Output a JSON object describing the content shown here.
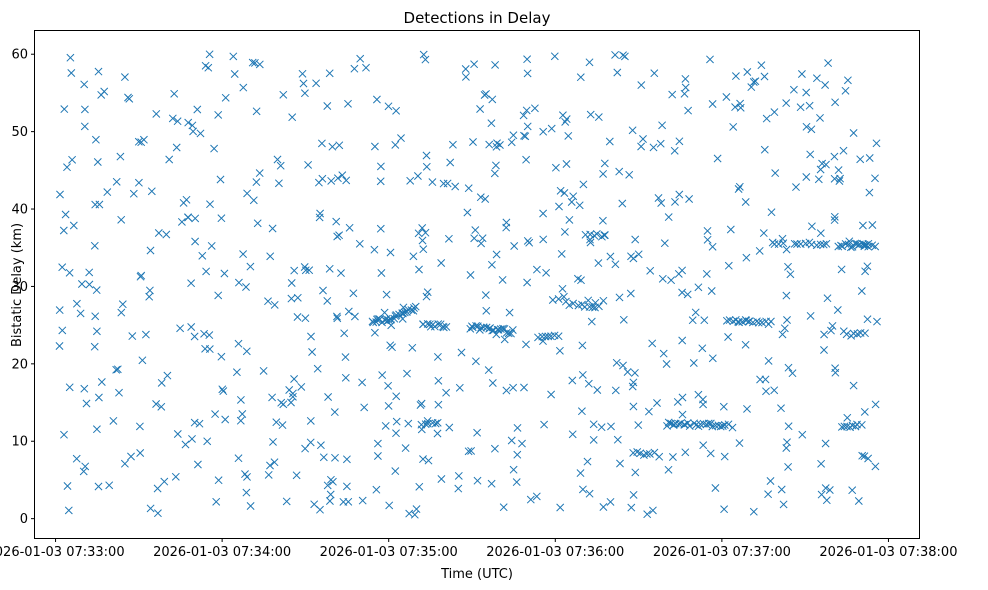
{
  "chart_data": {
    "type": "scatter",
    "title": "Detections in Delay",
    "xlabel": "Time (UTC)",
    "ylabel": "Bistatic Delay (km)",
    "marker": "x",
    "marker_color": "#1f77b4",
    "grid": false,
    "x_unit": "seconds after 2026-01-03 07:33:00 UTC",
    "xlim": [
      -7.4,
      311
    ],
    "ylim": [
      -2.5,
      63
    ],
    "x_ticks": [
      0,
      60,
      120,
      180,
      240,
      300
    ],
    "x_tick_labels": [
      "2026-01-03 07:33:00",
      "2026-01-03 07:34:00",
      "2026-01-03 07:35:00",
      "2026-01-03 07:36:00",
      "2026-01-03 07:37:00",
      "2026-01-03 07:38:00"
    ],
    "y_ticks": [
      0,
      10,
      20,
      30,
      40,
      50,
      60
    ],
    "y_tick_labels": [
      "0",
      "10",
      "20",
      "30",
      "40",
      "50",
      "60"
    ],
    "generator": {
      "seed": 20260103,
      "random_detections": 720,
      "x_range": [
        0.5,
        296
      ],
      "y_range": [
        0.5,
        60
      ],
      "tracks": [
        {
          "x_start": 114,
          "x_end": 121,
          "y_start": 25.6,
          "y_end": 25.6,
          "count": 12,
          "jitter": 0.25
        },
        {
          "x_start": 121,
          "x_end": 130,
          "y_start": 25.8,
          "y_end": 27.2,
          "count": 14,
          "jitter": 0.3
        },
        {
          "x_start": 132,
          "x_end": 141,
          "y_start": 25.1,
          "y_end": 24.9,
          "count": 12,
          "jitter": 0.25
        },
        {
          "x_start": 149,
          "x_end": 165,
          "y_start": 24.8,
          "y_end": 24.1,
          "count": 22,
          "jitter": 0.3
        },
        {
          "x_start": 132,
          "x_end": 138,
          "y_start": 12.2,
          "y_end": 12.2,
          "count": 6,
          "jitter": 0.2
        },
        {
          "x_start": 174,
          "x_end": 181,
          "y_start": 23.5,
          "y_end": 23.5,
          "count": 7,
          "jitter": 0.2
        },
        {
          "x_start": 184,
          "x_end": 196,
          "y_start": 27.8,
          "y_end": 27.4,
          "count": 10,
          "jitter": 0.25
        },
        {
          "x_start": 191,
          "x_end": 198,
          "y_start": 36.5,
          "y_end": 36.5,
          "count": 6,
          "jitter": 0.3
        },
        {
          "x_start": 208,
          "x_end": 214,
          "y_start": 8.6,
          "y_end": 8.2,
          "count": 6,
          "jitter": 0.2
        },
        {
          "x_start": 220,
          "x_end": 242,
          "y_start": 12.2,
          "y_end": 12.0,
          "count": 26,
          "jitter": 0.25
        },
        {
          "x_start": 242,
          "x_end": 250,
          "y_start": 25.5,
          "y_end": 25.5,
          "count": 10,
          "jitter": 0.2
        },
        {
          "x_start": 250,
          "x_end": 258,
          "y_start": 25.3,
          "y_end": 25.3,
          "count": 8,
          "jitter": 0.2
        },
        {
          "x_start": 258,
          "x_end": 262,
          "y_start": 35.5,
          "y_end": 35.5,
          "count": 4,
          "jitter": 0.2
        },
        {
          "x_start": 266,
          "x_end": 278,
          "y_start": 35.5,
          "y_end": 35.5,
          "count": 10,
          "jitter": 0.2
        },
        {
          "x_start": 282,
          "x_end": 293,
          "y_start": 35.3,
          "y_end": 35.3,
          "count": 14,
          "jitter": 0.25
        },
        {
          "x_start": 290,
          "x_end": 295,
          "y_start": 35.3,
          "y_end": 35.3,
          "count": 6,
          "jitter": 0.2
        },
        {
          "x_start": 283,
          "x_end": 290,
          "y_start": 12.0,
          "y_end": 12.0,
          "count": 8,
          "jitter": 0.2
        },
        {
          "x_start": 285,
          "x_end": 290,
          "y_start": 23.8,
          "y_end": 23.8,
          "count": 5,
          "jitter": 0.2
        }
      ]
    }
  }
}
